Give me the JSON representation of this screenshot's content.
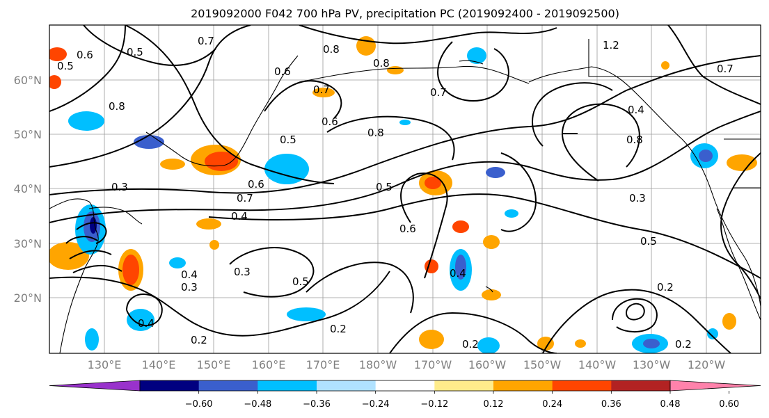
{
  "title": "2019092000 F042 700 hPa PV, precipitation PC (2019092400 - 2019092500)",
  "map": {
    "latitude_labels": [
      "60°N",
      "50°N",
      "40°N",
      "30°N",
      "20°N"
    ],
    "longitude_labels": [
      "130°E",
      "140°E",
      "150°E",
      "160°E",
      "170°E",
      "180°W",
      "170°W",
      "160°W",
      "150°W",
      "140°W",
      "130°W",
      "120°W"
    ],
    "land_color": "#000000",
    "gridline_color": "#9a9a9a"
  },
  "colorbar": {
    "ticks": [
      "−0.60",
      "−0.48",
      "−0.36",
      "−0.24",
      "−0.12",
      "0.12",
      "0.24",
      "0.36",
      "0.48",
      "0.60"
    ],
    "colors": [
      "#9932cc",
      "#000080",
      "#3a5fcd",
      "#00bfff",
      "#b0e2ff",
      "#ffffff",
      "#ffec8b",
      "#ffa500",
      "#ff4500",
      "#b22222",
      "#ff82ab"
    ]
  },
  "pv_contour_labels": [
    "0.2",
    "0.3",
    "0.4",
    "0.5",
    "0.6",
    "0.7",
    "0.8",
    "1.2"
  ]
}
